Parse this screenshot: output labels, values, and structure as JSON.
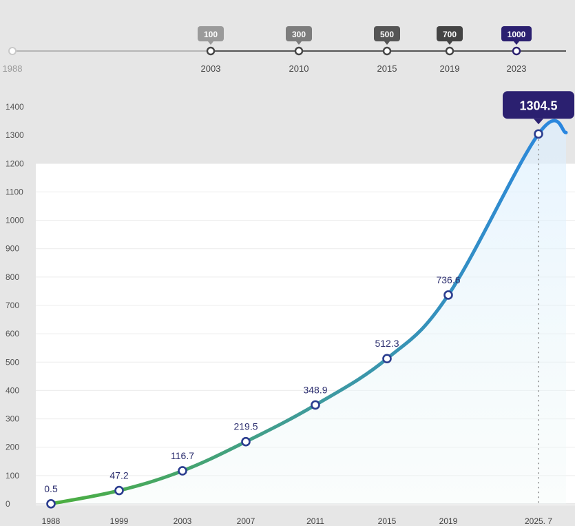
{
  "timeline": {
    "start_label": "1988",
    "milestones": [
      {
        "year": "2003",
        "badge": "100",
        "color": "#9a9a9a"
      },
      {
        "year": "2010",
        "badge": "300",
        "color": "#7d7d7d"
      },
      {
        "year": "2015",
        "badge": "500",
        "color": "#555555"
      },
      {
        "year": "2019",
        "badge": "700",
        "color": "#444444"
      },
      {
        "year": "2023",
        "badge": "1000",
        "color": "#2b2070"
      }
    ]
  },
  "chart_data": {
    "type": "line",
    "title": "",
    "xlabel": "",
    "ylabel": "",
    "ylim": [
      0,
      1400
    ],
    "yticks": [
      0,
      100,
      200,
      300,
      400,
      500,
      600,
      700,
      800,
      900,
      1000,
      1100,
      1200,
      1300,
      1400
    ],
    "grid": true,
    "categories": [
      "1988",
      "1999",
      "2003",
      "2007",
      "2011",
      "2015",
      "2019",
      "2025. 7"
    ],
    "points": [
      {
        "x": "1988",
        "value": 0.5,
        "label": "0.5"
      },
      {
        "x": "1999",
        "value": 47.2,
        "label": "47.2"
      },
      {
        "x": "2003",
        "value": 116.7,
        "label": "116.7"
      },
      {
        "x": "2007",
        "value": 219.5,
        "label": "219.5"
      },
      {
        "x": "2011",
        "value": 348.9,
        "label": "348.9"
      },
      {
        "x": "2015",
        "value": 512.3,
        "label": "512.3"
      },
      {
        "x": "2019",
        "value": 736.6,
        "label": "736.6"
      },
      {
        "x": "2025. 7",
        "value": 1304.5,
        "label": "1304.5",
        "highlight": true
      }
    ],
    "colors": {
      "start": "#4caf3e",
      "mid": "#3f9b9b",
      "end": "#2a86e0",
      "marker": "#2b3d8f",
      "callout": "#2b2070"
    }
  }
}
